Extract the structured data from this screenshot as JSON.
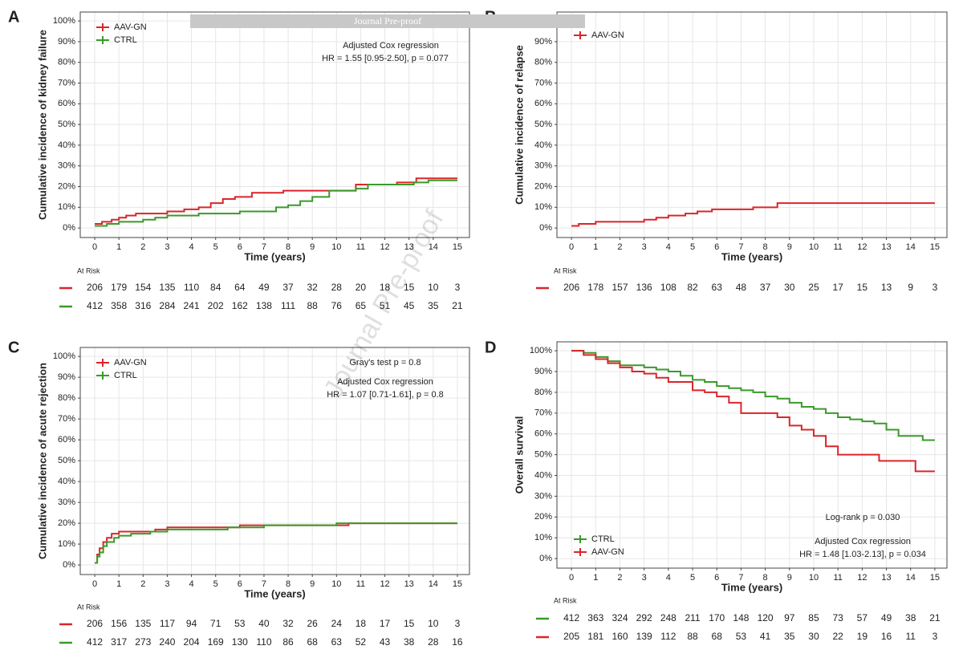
{
  "banner": "Journal Pre-proof",
  "watermark": "Journal Pre-proof",
  "chart_data": [
    {
      "type": "line",
      "panel_label": "A",
      "ylabel": "Cumulative incidence of kidney failure",
      "xlabel": "Time (years)",
      "grid": true,
      "xlim": [
        -0.6,
        15.5
      ],
      "ylim": [
        -4.6,
        104.3
      ],
      "xticks": [
        0,
        1,
        2,
        3,
        4,
        5,
        6,
        7,
        8,
        9,
        10,
        11,
        12,
        13,
        14,
        15
      ],
      "yticks": [
        {
          "value": 0,
          "label": "0%"
        },
        {
          "value": 10,
          "label": "10%"
        },
        {
          "value": 20,
          "label": "20%"
        },
        {
          "value": 30,
          "label": "30%"
        },
        {
          "value": 40,
          "label": "40%"
        },
        {
          "value": 50,
          "label": "50%"
        },
        {
          "value": 60,
          "label": "60%"
        },
        {
          "value": 70,
          "label": "70%"
        },
        {
          "value": 80,
          "label": "80%"
        },
        {
          "value": 90,
          "label": "90%"
        },
        {
          "value": 100,
          "label": "100%"
        }
      ],
      "series": [
        {
          "name": "AAV-GN",
          "color": "#d9262b",
          "x": [
            0,
            0.3,
            0.7,
            1,
            1.3,
            1.7,
            2.5,
            3,
            3.7,
            4.3,
            4.8,
            5.3,
            5.8,
            6.5,
            7,
            7.8,
            9,
            9.8,
            10.8,
            11.5,
            12.5,
            13.3,
            15
          ],
          "values": [
            2,
            3,
            4,
            5,
            6,
            7,
            7,
            8,
            9,
            10,
            12,
            14,
            15,
            17,
            17,
            18,
            18,
            18,
            21,
            21,
            22,
            24,
            24
          ]
        },
        {
          "name": "CTRL",
          "color": "#3a9a2a",
          "x": [
            0,
            0.5,
            1,
            2,
            2.5,
            3,
            4,
            4.3,
            5.5,
            6,
            7,
            7.5,
            8,
            8.5,
            9,
            9.7,
            10.5,
            10.8,
            11.3,
            12,
            13.2,
            13.8,
            15
          ],
          "values": [
            1,
            2,
            3,
            4,
            5,
            6,
            6,
            7,
            7,
            8,
            8,
            10,
            11,
            13,
            15,
            18,
            18,
            19,
            21,
            21,
            22,
            23,
            23
          ]
        }
      ],
      "annotations": [
        "Adjusted Cox regression",
        "HR = 1.55 [0.95-2.50], p = 0.077"
      ],
      "risk_table": {
        "title": "At Risk",
        "rows": [
          {
            "color": "#d9262b",
            "values": [
              206,
              179,
              154,
              135,
              110,
              84,
              64,
              49,
              37,
              32,
              28,
              20,
              18,
              15,
              10,
              3
            ]
          },
          {
            "color": "#3a9a2a",
            "values": [
              412,
              358,
              316,
              284,
              241,
              202,
              162,
              138,
              111,
              88,
              76,
              65,
              51,
              45,
              35,
              21
            ]
          }
        ]
      }
    },
    {
      "type": "line",
      "panel_label": "B",
      "ylabel": "Cumulative incidence of relapse",
      "xlabel": "Time (years)",
      "grid": true,
      "xlim": [
        -0.6,
        15.5
      ],
      "ylim": [
        -4.6,
        104.3
      ],
      "xticks": [
        0,
        1,
        2,
        3,
        4,
        5,
        6,
        7,
        8,
        9,
        10,
        11,
        12,
        13,
        14,
        15
      ],
      "yticks": [
        {
          "value": 0,
          "label": "0%"
        },
        {
          "value": 10,
          "label": "10%"
        },
        {
          "value": 20,
          "label": "20%"
        },
        {
          "value": 30,
          "label": "30%"
        },
        {
          "value": 40,
          "label": "40%"
        },
        {
          "value": 50,
          "label": "50%"
        },
        {
          "value": 60,
          "label": "60%"
        },
        {
          "value": 70,
          "label": "70%"
        },
        {
          "value": 80,
          "label": "80%"
        },
        {
          "value": 90,
          "label": "90%"
        }
      ],
      "series": [
        {
          "name": "AAV-GN",
          "color": "#d9262b",
          "x": [
            0,
            0.3,
            0.8,
            1,
            2,
            3,
            3.5,
            4,
            4.7,
            5.2,
            5.8,
            7.5,
            8.5,
            15
          ],
          "values": [
            1,
            2,
            2,
            3,
            3,
            4,
            5,
            6,
            7,
            8,
            9,
            10,
            12,
            12
          ]
        }
      ],
      "annotations": [],
      "risk_table": {
        "title": "At Risk",
        "rows": [
          {
            "color": "#d9262b",
            "values": [
              206,
              178,
              157,
              136,
              108,
              82,
              63,
              48,
              37,
              30,
              25,
              17,
              15,
              13,
              9,
              3
            ]
          }
        ]
      }
    },
    {
      "type": "line",
      "panel_label": "C",
      "ylabel": "Cumulative incidence of acute rejection",
      "xlabel": "Time (years)",
      "grid": true,
      "xlim": [
        -0.6,
        15.5
      ],
      "ylim": [
        -4.6,
        104.3
      ],
      "xticks": [
        0,
        1,
        2,
        3,
        4,
        5,
        6,
        7,
        8,
        9,
        10,
        11,
        12,
        13,
        14,
        15
      ],
      "yticks": [
        {
          "value": 0,
          "label": "0%"
        },
        {
          "value": 10,
          "label": "10%"
        },
        {
          "value": 20,
          "label": "20%"
        },
        {
          "value": 30,
          "label": "30%"
        },
        {
          "value": 40,
          "label": "40%"
        },
        {
          "value": 50,
          "label": "50%"
        },
        {
          "value": 60,
          "label": "60%"
        },
        {
          "value": 70,
          "label": "70%"
        },
        {
          "value": 80,
          "label": "80%"
        },
        {
          "value": 90,
          "label": "90%"
        },
        {
          "value": 100,
          "label": "100%"
        }
      ],
      "series": [
        {
          "name": "AAV-GN",
          "color": "#d9262b",
          "x": [
            0,
            0.1,
            0.2,
            0.35,
            0.5,
            0.7,
            1,
            2,
            2.5,
            3,
            6,
            10.5,
            15
          ],
          "values": [
            1,
            5,
            8,
            11,
            13,
            15,
            16,
            16,
            17,
            18,
            19,
            20,
            20
          ]
        },
        {
          "name": "CTRL",
          "color": "#3a9a2a",
          "x": [
            0,
            0.1,
            0.2,
            0.35,
            0.5,
            0.8,
            1,
            1.5,
            2.3,
            3,
            5.5,
            7,
            10,
            15
          ],
          "values": [
            1,
            4,
            6,
            9,
            11,
            13,
            14,
            15,
            16,
            17,
            18,
            19,
            20,
            20
          ]
        }
      ],
      "annotations": [
        "Gray's test p = 0.8",
        "Adjusted Cox regression",
        "HR = 1.07 [0.71-1.61], p = 0.8"
      ],
      "risk_table": {
        "title": "At Risk",
        "rows": [
          {
            "color": "#d9262b",
            "values": [
              206,
              156,
              135,
              117,
              94,
              71,
              53,
              40,
              32,
              26,
              24,
              18,
              17,
              15,
              10,
              3
            ]
          },
          {
            "color": "#3a9a2a",
            "values": [
              412,
              317,
              273,
              240,
              204,
              169,
              130,
              110,
              86,
              68,
              63,
              52,
              43,
              38,
              28,
              16
            ]
          }
        ]
      }
    },
    {
      "type": "line",
      "panel_label": "D",
      "ylabel": "Overall survival",
      "xlabel": "Time (years)",
      "grid": true,
      "xlim": [
        -0.6,
        15.5
      ],
      "ylim": [
        -4.6,
        104.3
      ],
      "xticks": [
        0,
        1,
        2,
        3,
        4,
        5,
        6,
        7,
        8,
        9,
        10,
        11,
        12,
        13,
        14,
        15
      ],
      "yticks": [
        {
          "value": 0,
          "label": "0%"
        },
        {
          "value": 10,
          "label": "10%"
        },
        {
          "value": 20,
          "label": "20%"
        },
        {
          "value": 30,
          "label": "30%"
        },
        {
          "value": 40,
          "label": "40%"
        },
        {
          "value": 50,
          "label": "50%"
        },
        {
          "value": 60,
          "label": "60%"
        },
        {
          "value": 70,
          "label": "70%"
        },
        {
          "value": 80,
          "label": "80%"
        },
        {
          "value": 90,
          "label": "90%"
        },
        {
          "value": 100,
          "label": "100%"
        }
      ],
      "series": [
        {
          "name": "CTRL",
          "color": "#3a9a2a",
          "x": [
            0,
            0.5,
            1,
            1.5,
            2,
            3,
            3.5,
            4,
            4.5,
            5,
            5.5,
            6,
            6.5,
            7,
            7.5,
            8,
            8.5,
            9,
            9.5,
            10,
            10.5,
            11,
            11.5,
            12,
            12.5,
            13,
            13.5,
            14,
            14.5,
            15
          ],
          "values": [
            100,
            99,
            97,
            95,
            93,
            92,
            91,
            90,
            88,
            86,
            85,
            83,
            82,
            81,
            80,
            78,
            77,
            75,
            73,
            72,
            70,
            68,
            67,
            66,
            65,
            62,
            59,
            59,
            57,
            57
          ]
        },
        {
          "name": "AAV-GN",
          "color": "#d9262b",
          "x": [
            0,
            0.5,
            1,
            1.5,
            2,
            2.5,
            3,
            3.5,
            4,
            4.5,
            5,
            5.5,
            6,
            6.5,
            7,
            8,
            8.5,
            9,
            9.5,
            10,
            10.5,
            11,
            12,
            12.7,
            13,
            14,
            14.2,
            15
          ],
          "values": [
            100,
            98,
            96,
            94,
            92,
            90,
            89,
            87,
            85,
            85,
            81,
            80,
            78,
            75,
            70,
            70,
            68,
            64,
            62,
            59,
            54,
            50,
            50,
            47,
            47,
            47,
            42,
            42
          ]
        }
      ],
      "annotations": [
        "Log-rank p = 0.030",
        "Adjusted Cox regression",
        "HR = 1.48 [1.03-2.13], p = 0.034"
      ],
      "risk_table": {
        "title": "At Risk",
        "rows": [
          {
            "color": "#3a9a2a",
            "values": [
              412,
              363,
              324,
              292,
              248,
              211,
              170,
              148,
              120,
              97,
              85,
              73,
              57,
              49,
              38,
              21
            ]
          },
          {
            "color": "#d9262b",
            "values": [
              205,
              181,
              160,
              139,
              112,
              88,
              68,
              53,
              41,
              35,
              30,
              22,
              19,
              16,
              11,
              3
            ]
          }
        ]
      }
    }
  ]
}
